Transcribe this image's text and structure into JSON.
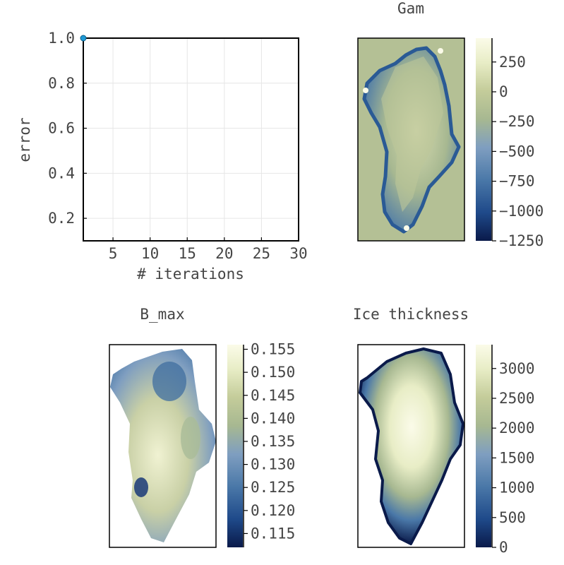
{
  "figure": {
    "colormap": [
      "#0a1a4a",
      "#1f4a8a",
      "#4a78a8",
      "#7f9ec0",
      "#a7b891",
      "#c4cc9a",
      "#e8edc6",
      "#fbfbe9"
    ]
  },
  "chart_data": [
    {
      "id": "error-plot",
      "type": "line",
      "title": "",
      "xlabel": "# iterations",
      "ylabel": "error",
      "xlim": [
        1,
        30
      ],
      "ylim": [
        0.1,
        1.0
      ],
      "xticks": [
        5,
        10,
        15,
        20,
        25,
        30
      ],
      "yticks": [
        0.2,
        0.4,
        0.6,
        0.8,
        1.0
      ],
      "yticklabels": [
        "0.2",
        "0.4",
        "0.6",
        "0.8",
        "1.0"
      ],
      "grid": true,
      "series": [
        {
          "x": [
            1
          ],
          "y": [
            1.0
          ],
          "color": "#1f9ad6"
        }
      ]
    },
    {
      "id": "gam-map",
      "type": "heatmap",
      "title": "Gam",
      "colorbar": {
        "range": [
          -1250,
          450
        ],
        "ticks": [
          250,
          0,
          -250,
          -500,
          -750,
          -1000,
          -1250
        ],
        "ticklabels": [
          "250",
          "0",
          "−250",
          "−500",
          "−750",
          "−1000",
          "−1250"
        ]
      },
      "background_color": "#b4c095"
    },
    {
      "id": "bmax-map",
      "type": "heatmap",
      "title": "B_max",
      "colorbar": {
        "range": [
          0.112,
          0.156
        ],
        "ticks": [
          0.155,
          0.15,
          0.145,
          0.14,
          0.135,
          0.13,
          0.125,
          0.12,
          0.115
        ],
        "ticklabels": [
          "0.155",
          "0.150",
          "0.145",
          "0.140",
          "0.135",
          "0.130",
          "0.125",
          "0.120",
          "0.115"
        ]
      },
      "background_color": "#ffffff"
    },
    {
      "id": "thickness-map",
      "type": "heatmap",
      "title": "Ice thickness",
      "colorbar": {
        "range": [
          0,
          3400
        ],
        "ticks": [
          3000,
          2500,
          2000,
          1500,
          1000,
          500,
          0
        ],
        "ticklabels": [
          "3000",
          "2500",
          "2000",
          "1500",
          "1000",
          "500",
          "0"
        ]
      },
      "background_color": "#ffffff"
    }
  ]
}
